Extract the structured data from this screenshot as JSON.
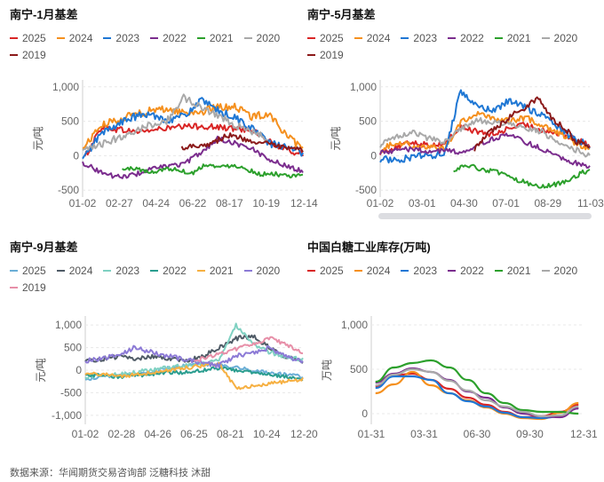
{
  "source": "数据来源：华闻期货交易咨询部  泛糖科技  沐甜",
  "chart_data": [
    {
      "id": "jan",
      "type": "line",
      "title": "南宁-1月基差",
      "ylabel": "元/吨",
      "ylim": [
        -600,
        1100
      ],
      "yticks": [
        1000,
        500,
        0,
        -500
      ],
      "xticks": [
        "01-02",
        "02-27",
        "04-24",
        "06-22",
        "08-17",
        "10-19",
        "12-14"
      ],
      "scroll_bar": false,
      "series": [
        {
          "name": "2025",
          "color": "#d92626",
          "start": 0.01,
          "end": 1.0,
          "jitter": 45,
          "values": [
            -20,
            420,
            380,
            350,
            370,
            400,
            420,
            430,
            410,
            390,
            380,
            200,
            80,
            20
          ]
        },
        {
          "name": "2024",
          "color": "#f5901e",
          "start": 0.0,
          "end": 1.0,
          "jitter": 55,
          "values": [
            100,
            420,
            520,
            600,
            650,
            680,
            620,
            640,
            700,
            720,
            560,
            620,
            300,
            80
          ]
        },
        {
          "name": "2023",
          "color": "#1f77d4",
          "start": 0.0,
          "end": 1.0,
          "jitter": 55,
          "values": [
            -60,
            300,
            450,
            560,
            600,
            520,
            580,
            800,
            650,
            550,
            400,
            180,
            120,
            40
          ]
        },
        {
          "name": "2022",
          "color": "#7b2d8e",
          "start": 0.0,
          "end": 1.0,
          "jitter": 35,
          "values": [
            -100,
            -230,
            -310,
            -280,
            -200,
            -150,
            -120,
            50,
            250,
            180,
            100,
            -50,
            -150,
            -220
          ]
        },
        {
          "name": "2021",
          "color": "#2ca02c",
          "start": 0.18,
          "end": 1.0,
          "jitter": 30,
          "values": [
            -200,
            -180,
            -250,
            -190,
            -200,
            -260,
            -120,
            -170,
            -130,
            -200,
            -270,
            -260,
            -310,
            -280
          ]
        },
        {
          "name": "2020",
          "color": "#a9a9a9",
          "start": 0.0,
          "end": 0.84,
          "jitter": 50,
          "values": [
            60,
            150,
            250,
            350,
            450,
            500,
            850,
            700,
            600,
            450,
            350,
            250
          ]
        },
        {
          "name": "2019",
          "color": "#8b1a1a",
          "start": 0.45,
          "end": 1.0,
          "jitter": 40,
          "values": [
            120,
            150,
            180,
            300,
            250,
            200,
            150,
            100,
            80
          ]
        }
      ]
    },
    {
      "id": "may",
      "type": "line",
      "title": "南宁-5月基差",
      "ylabel": "元/吨",
      "ylim": [
        -600,
        1100
      ],
      "yticks": [
        1000,
        500,
        0,
        -500
      ],
      "xticks": [
        "01-02",
        "03-01",
        "04-30",
        "07-01",
        "08-29",
        "11-03"
      ],
      "scroll_bar": true,
      "series": [
        {
          "name": "2025",
          "color": "#d92626",
          "start": 0.0,
          "end": 1.0,
          "jitter": 40,
          "values": [
            50,
            120,
            200,
            150,
            180,
            420,
            350,
            300,
            400,
            450,
            380,
            320,
            250,
            150
          ]
        },
        {
          "name": "2024",
          "color": "#f5901e",
          "start": 0.0,
          "end": 1.0,
          "jitter": 45,
          "values": [
            80,
            200,
            150,
            120,
            100,
            500,
            600,
            550,
            500,
            550,
            450,
            350,
            200,
            100
          ]
        },
        {
          "name": "2023",
          "color": "#1f77d4",
          "start": 0.0,
          "end": 1.0,
          "jitter": 50,
          "values": [
            -50,
            -60,
            -20,
            0,
            30,
            950,
            700,
            650,
            800,
            700,
            600,
            420,
            250,
            150
          ]
        },
        {
          "name": "2022",
          "color": "#7b2d8e",
          "start": 0.0,
          "end": 1.0,
          "jitter": 35,
          "values": [
            50,
            80,
            100,
            60,
            80,
            50,
            150,
            250,
            300,
            200,
            100,
            0,
            -100,
            -150
          ]
        },
        {
          "name": "2021",
          "color": "#2ca02c",
          "start": 0.35,
          "end": 1.0,
          "jitter": 35,
          "values": [
            -200,
            -150,
            -200,
            -250,
            -350,
            -400,
            -450,
            -400,
            -300,
            -200
          ]
        },
        {
          "name": "2020",
          "color": "#a9a9a9",
          "start": 0.0,
          "end": 1.0,
          "jitter": 40,
          "values": [
            150,
            280,
            350,
            250,
            200,
            380,
            520,
            480,
            450,
            400,
            350,
            200,
            100,
            0
          ]
        },
        {
          "name": "2019",
          "color": "#8b1a1a",
          "start": 0.45,
          "end": 1.0,
          "jitter": 45,
          "values": [
            100,
            300,
            450,
            600,
            700,
            850,
            550,
            400,
            200,
            100
          ]
        }
      ]
    },
    {
      "id": "sep",
      "type": "line",
      "title": "南宁-9月基差",
      "ylabel": "元/吨",
      "ylim": [
        -1200,
        1200
      ],
      "yticks": [
        1000,
        500,
        0,
        -500,
        -1000
      ],
      "xticks": [
        "01-02",
        "02-28",
        "04-26",
        "06-25",
        "08-21",
        "10-24",
        "12-20"
      ],
      "scroll_bar": false,
      "series": [
        {
          "name": "2025",
          "color": "#6baed6",
          "start": 0.0,
          "end": 1.0,
          "jitter": 40,
          "values": [
            -200,
            -150,
            -100,
            -100,
            -50,
            50,
            100,
            150,
            100,
            50,
            0,
            -50,
            -100,
            -150
          ]
        },
        {
          "name": "2024",
          "color": "#4f5b66",
          "start": 0.0,
          "end": 1.0,
          "jitter": 50,
          "values": [
            200,
            250,
            300,
            250,
            300,
            250,
            200,
            300,
            500,
            700,
            750,
            500,
            300,
            200
          ]
        },
        {
          "name": "2023",
          "color": "#7fd1c2",
          "start": 0.0,
          "end": 1.0,
          "jitter": 50,
          "values": [
            -150,
            -100,
            -100,
            -50,
            0,
            50,
            100,
            150,
            200,
            1000,
            600,
            400,
            300,
            250
          ]
        },
        {
          "name": "2022",
          "color": "#2a9d8f",
          "start": 0.0,
          "end": 1.0,
          "jitter": 40,
          "values": [
            -100,
            -120,
            -150,
            -120,
            -100,
            -50,
            -50,
            0,
            50,
            0,
            -50,
            -100,
            -150,
            -200
          ]
        },
        {
          "name": "2021",
          "color": "#f6b042",
          "start": 0.0,
          "end": 1.0,
          "jitter": 40,
          "values": [
            -100,
            -80,
            -150,
            -100,
            -50,
            0,
            50,
            100,
            150,
            -400,
            -350,
            -300,
            -250,
            -200
          ]
        },
        {
          "name": "2020",
          "color": "#8c7ad6",
          "start": 0.0,
          "end": 1.0,
          "jitter": 55,
          "values": [
            200,
            250,
            350,
            500,
            400,
            300,
            250,
            150,
            100,
            300,
            400,
            500,
            300,
            200
          ]
        },
        {
          "name": "2019",
          "color": "#e78fa8",
          "start": 0.5,
          "end": 1.0,
          "jitter": 45,
          "values": [
            200,
            300,
            400,
            500,
            600,
            700,
            550,
            400
          ]
        }
      ]
    },
    {
      "id": "stock",
      "type": "line",
      "title": "中国白糖工业库存(万吨)",
      "ylabel": "万吨",
      "ylim": [
        -120,
        1100
      ],
      "yticks": [
        1000,
        500,
        0
      ],
      "xticks": [
        "01-31",
        "03-31",
        "06-30",
        "09-30",
        "12-31"
      ],
      "scroll_bar": false,
      "series": [
        {
          "name": "2025",
          "color": "#d92626",
          "x": [
            0,
            1,
            2,
            3,
            4,
            5,
            6,
            7,
            8,
            9,
            10,
            11
          ],
          "values": [
            310,
            430,
            450,
            380,
            280,
            180,
            100,
            20,
            -40,
            -30,
            20,
            100
          ]
        },
        {
          "name": "2024",
          "color": "#f5901e",
          "x": [
            0,
            1,
            2,
            3,
            4,
            5,
            6,
            7,
            8,
            9,
            10,
            11
          ],
          "values": [
            230,
            330,
            470,
            320,
            230,
            150,
            70,
            0,
            -50,
            -60,
            10,
            120
          ]
        },
        {
          "name": "2023",
          "color": "#1f77d4",
          "x": [
            0,
            1,
            2,
            3,
            4,
            5,
            6,
            7,
            8,
            9,
            10,
            11
          ],
          "values": [
            290,
            420,
            420,
            380,
            230,
            140,
            80,
            10,
            -40,
            -50,
            -30,
            60
          ]
        },
        {
          "name": "2022",
          "color": "#7b2d8e",
          "x": [
            0,
            1,
            2,
            3,
            4,
            5,
            6,
            7,
            8,
            9,
            10,
            11
          ],
          "values": [
            350,
            450,
            510,
            470,
            380,
            250,
            180,
            70,
            0,
            -30,
            -40,
            60
          ]
        },
        {
          "name": "2021",
          "color": "#2ca02c",
          "x": [
            0,
            1,
            2,
            3,
            4,
            5,
            6,
            7,
            8,
            9,
            10,
            11
          ],
          "values": [
            360,
            520,
            570,
            600,
            520,
            380,
            230,
            120,
            40,
            20,
            20,
            0
          ]
        },
        {
          "name": "2020",
          "color": "#a9a9a9",
          "x": [
            0,
            1,
            2,
            3,
            4,
            5,
            6,
            7,
            8,
            9,
            10,
            11
          ],
          "values": [
            320,
            440,
            500,
            470,
            370,
            260,
            150,
            80,
            20,
            -30,
            -20,
            80
          ]
        }
      ]
    }
  ]
}
